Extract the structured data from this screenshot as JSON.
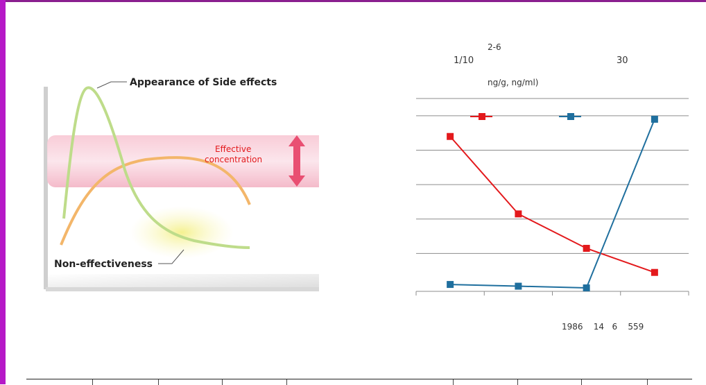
{
  "diagram": {
    "label_side_effects": "Appearance of Side effects",
    "label_effective": "Effective concentration",
    "label_effective_line1": "Effective",
    "label_effective_line2": "concentration",
    "label_non_effect": "Non-effectiveness"
  },
  "notes": {
    "n1": "2-6",
    "n2": "1/10",
    "n3": "30",
    "unit": "ng/g, ng/ml)",
    "footer": "1986    14   6    559"
  },
  "colors": {
    "series_red": "#e3191c",
    "series_blue": "#1f6f9e",
    "frame": "#b619c7"
  },
  "chart_data": {
    "type": "line",
    "x": [
      1,
      2,
      3,
      4
    ],
    "ylim": [
      0,
      5.2
    ],
    "series": [
      {
        "color": "#e3191c",
        "values": [
          4.5,
          2.25,
          1.25,
          0.55
        ]
      },
      {
        "color": "#1f6f9e",
        "values": [
          0.2,
          0.15,
          0.1,
          5.0
        ]
      }
    ],
    "grid": true
  }
}
